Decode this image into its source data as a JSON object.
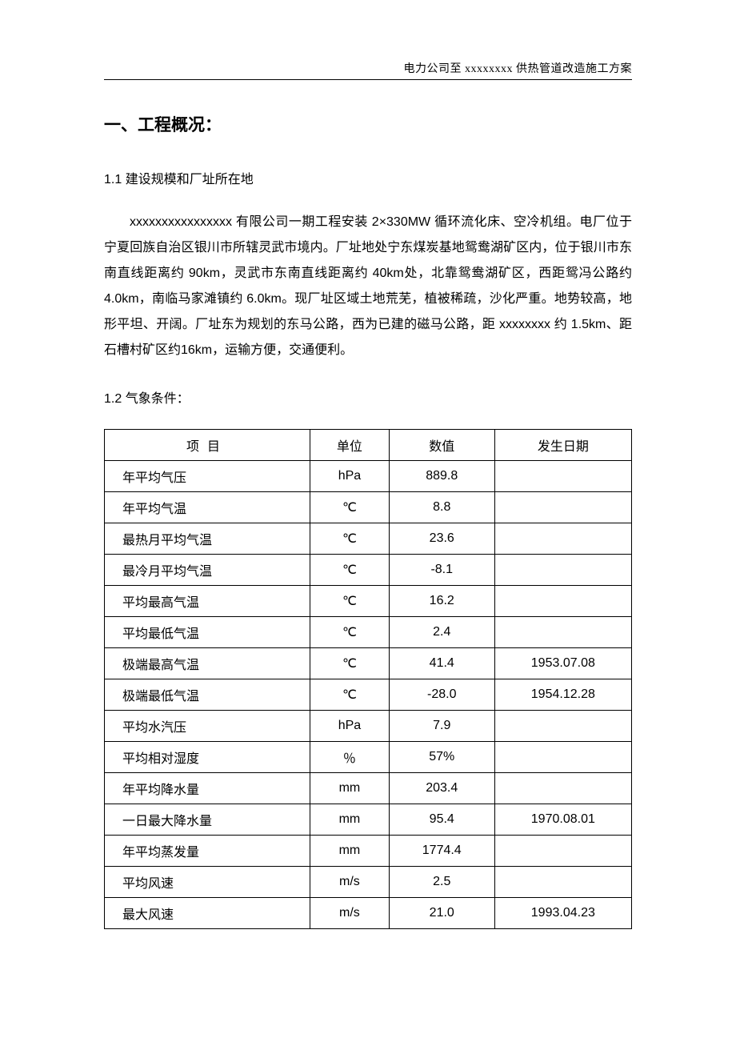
{
  "header": {
    "right_text": "电力公司至 xxxxxxxx 供热管道改造施工方案"
  },
  "section1": {
    "title": "一、工程概况：",
    "sub1_1": {
      "heading": "1.1 建设规模和厂址所在地",
      "paragraph": "xxxxxxxxxxxxxxxx 有限公司一期工程安装 2×330MW 循环流化床、空冷机组。电厂位于宁夏回族自治区银川市所辖灵武市境内。厂址地处宁东煤炭基地鸳鸯湖矿区内，位于银川市东南直线距离约 90km，灵武市东南直线距离约 40km处，北靠鸳鸯湖矿区，西距鸳冯公路约 4.0km，南临马家滩镇约 6.0km。现厂址区域土地荒芜，植被稀疏，沙化严重。地势较高，地形平坦、开阔。厂址东为规划的东马公路，西为已建的磁马公路，距 xxxxxxxx 约 1.5km、距石槽村矿区约16km，运输方便，交通便利。"
    },
    "sub1_2": {
      "heading": "1.2 气象条件：",
      "table": {
        "columns": [
          "项目",
          "单位",
          "数值",
          "发生日期"
        ],
        "rows": [
          {
            "item": "年平均气压",
            "unit": "hPa",
            "value": "889.8",
            "date": ""
          },
          {
            "item": "年平均气温",
            "unit": "℃",
            "value": "8.8",
            "date": ""
          },
          {
            "item": "最热月平均气温",
            "unit": "℃",
            "value": "23.6",
            "date": ""
          },
          {
            "item": "最冷月平均气温",
            "unit": "℃",
            "value": "-8.1",
            "date": ""
          },
          {
            "item": "平均最高气温",
            "unit": "℃",
            "value": "16.2",
            "date": ""
          },
          {
            "item": "平均最低气温",
            "unit": "℃",
            "value": "2.4",
            "date": ""
          },
          {
            "item": "极端最高气温",
            "unit": "℃",
            "value": "41.4",
            "date": "1953.07.08"
          },
          {
            "item": "极端最低气温",
            "unit": "℃",
            "value": "-28.0",
            "date": "1954.12.28"
          },
          {
            "item": "平均水汽压",
            "unit": "hPa",
            "value": "7.9",
            "date": ""
          },
          {
            "item": "平均相对湿度",
            "unit": "％",
            "value": "57%",
            "date": ""
          },
          {
            "item": "年平均降水量",
            "unit": "mm",
            "value": "203.4",
            "date": ""
          },
          {
            "item": "一日最大降水量",
            "unit": "mm",
            "value": "95.4",
            "date": "1970.08.01"
          },
          {
            "item": "年平均蒸发量",
            "unit": "mm",
            "value": "1774.4",
            "date": ""
          },
          {
            "item": "平均风速",
            "unit": "m/s",
            "value": "2.5",
            "date": ""
          },
          {
            "item": "最大风速",
            "unit": "m/s",
            "value": "21.0",
            "date": "1993.04.23"
          }
        ]
      }
    }
  }
}
